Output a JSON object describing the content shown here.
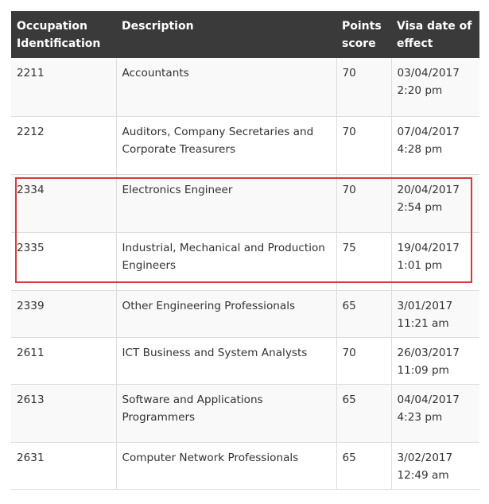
{
  "header": {
    "col1": "Occupation Identification",
    "col2": "Description",
    "col3": "Points score",
    "col4": "Visa date of effect"
  },
  "rows": [
    {
      "id": "2211",
      "description": "Accountants",
      "points": "70",
      "date": "03/04/2017",
      "time": "2:20 pm"
    },
    {
      "id": "2212",
      "description": "Auditors, Company Secretaries and Corporate Treasurers",
      "points": "70",
      "date": "07/04/2017",
      "time": "4:28 pm"
    },
    {
      "id": "2334",
      "description": "Electronics Engineer",
      "points": "70",
      "date": "20/04/2017",
      "time": "2:54 pm"
    },
    {
      "id": "2335",
      "description": "Industrial, Mechanical and Production Engineers",
      "points": "75",
      "date": "19/04/2017",
      "time": "1:01 pm"
    },
    {
      "id": "2339",
      "description": "Other Engineering Professionals",
      "points": "65",
      "date": "3/01/2017",
      "time": "11:21 am"
    },
    {
      "id": "2611",
      "description": "ICT Business and System Analysts",
      "points": "70",
      "date": "26/03/2017",
      "time": "11:09 pm"
    },
    {
      "id": "2613",
      "description": "Software and Applications Programmers",
      "points": "65",
      "date": "04/04/2017",
      "time": "4:23 pm"
    },
    {
      "id": "2631",
      "description": "Computer Network Professionals",
      "points": "65",
      "date": "3/02/2017",
      "time": "12:49 am"
    }
  ],
  "highlight_color": "#d9393b"
}
